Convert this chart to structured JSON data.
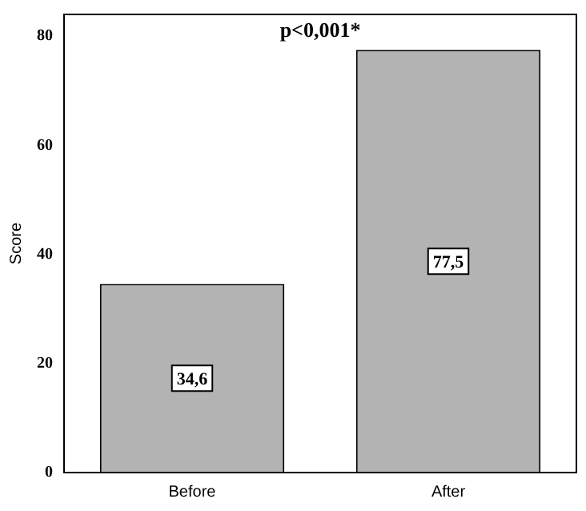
{
  "chart_data": {
    "type": "bar",
    "ylabel": "Score",
    "categories": [
      "Before",
      "After"
    ],
    "values": [
      34.6,
      77.5
    ],
    "value_labels": [
      "34,6",
      "77,5"
    ],
    "color": "#b3b3b3",
    "ylim": [
      0,
      84
    ],
    "yticks": [
      0,
      20,
      40,
      60,
      80
    ],
    "grid": false,
    "legend": false,
    "annotations": [
      "p<0,001*"
    ]
  }
}
